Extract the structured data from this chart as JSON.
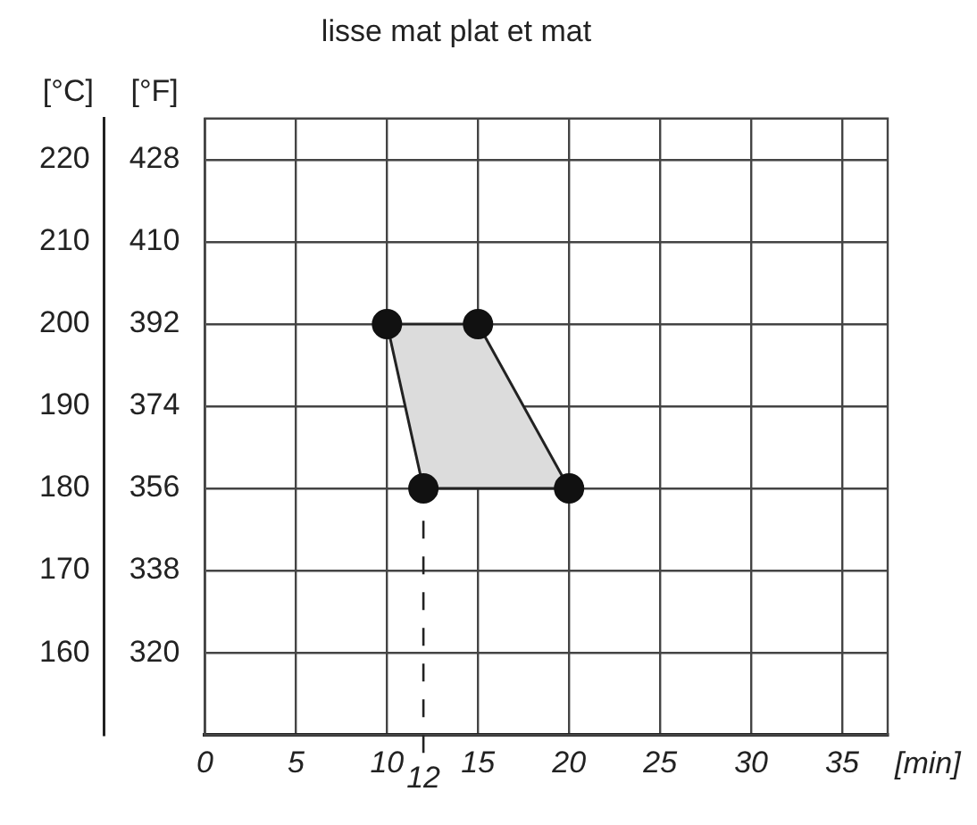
{
  "chart_data": {
    "type": "area",
    "title": "lisse mat plat et mat",
    "xlabel": "[min]",
    "ylabel": "[°C]",
    "y2label": "[°F]",
    "x": [
      10,
      15,
      20,
      12
    ],
    "series": [
      {
        "color": "#dcdcdc",
        "values": [
          200,
          200,
          180,
          180
        ]
      }
    ],
    "xlim": [
      0,
      37.5
    ],
    "xticks": [
      0,
      5,
      10,
      15,
      20,
      25,
      30,
      35
    ],
    "ylim": [
      150,
      225
    ],
    "yticks": [
      160,
      170,
      180,
      190,
      200,
      210,
      220
    ],
    "y2lim": [
      302,
      437
    ],
    "y2ticks": [
      320,
      338,
      356,
      374,
      392,
      410,
      428
    ],
    "ref_lines": [
      {
        "axis": "x",
        "value": 12,
        "label": "12",
        "line_style": "dashed"
      }
    ],
    "grid": true,
    "marker": "circle"
  }
}
